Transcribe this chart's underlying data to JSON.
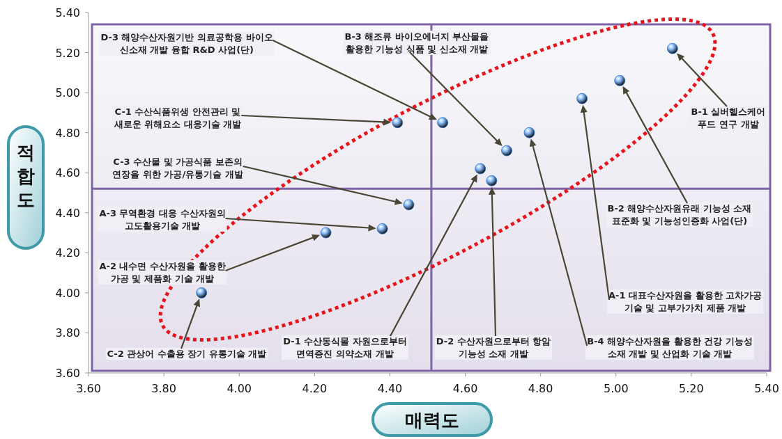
{
  "chart_data": {
    "type": "scatter",
    "xlabel": "매력도",
    "ylabel": "적합도",
    "xlim": [
      3.6,
      5.4
    ],
    "ylim": [
      3.6,
      5.4
    ],
    "xticks": [
      {
        "value": 3.6,
        "label": "3.60"
      },
      {
        "value": 3.8,
        "label": "3.80"
      },
      {
        "value": 4.0,
        "label": "4.00"
      },
      {
        "value": 4.2,
        "label": "4.20"
      },
      {
        "value": 4.4,
        "label": "4.40"
      },
      {
        "value": 4.6,
        "label": "4.60"
      },
      {
        "value": 4.8,
        "label": "4.80"
      },
      {
        "value": 5.0,
        "label": "5.00"
      },
      {
        "value": 5.2,
        "label": "5.20"
      },
      {
        "value": 5.4,
        "label": "5.40"
      }
    ],
    "yticks": [
      {
        "value": 3.6,
        "label": "3.60"
      },
      {
        "value": 3.8,
        "label": "3.80"
      },
      {
        "value": 4.0,
        "label": "4.00"
      },
      {
        "value": 4.2,
        "label": "4.20"
      },
      {
        "value": 4.4,
        "label": "4.40"
      },
      {
        "value": 4.6,
        "label": "4.60"
      },
      {
        "value": 4.8,
        "label": "4.80"
      },
      {
        "value": 5.0,
        "label": "5.00"
      },
      {
        "value": 5.2,
        "label": "5.20"
      },
      {
        "value": 5.4,
        "label": "5.40"
      }
    ],
    "marker": "circle",
    "series": [
      {
        "color": "#2a72d8",
        "x": [
          4.54,
          4.71,
          4.42,
          4.45,
          4.38,
          4.23,
          3.9,
          4.64,
          4.67,
          4.77,
          4.91,
          5.01,
          5.15
        ],
        "values": [
          4.85,
          4.71,
          4.85,
          4.44,
          4.32,
          4.3,
          4.0,
          4.62,
          4.56,
          4.8,
          4.97,
          5.06,
          5.22
        ]
      }
    ],
    "ref_lines": [
      {
        "axis": "x",
        "value": 4.51,
        "color": "#7e64a6"
      },
      {
        "axis": "y",
        "value": 4.52,
        "color": "#7e64a6"
      }
    ],
    "annotations": [
      "D-3 해양수산자원기반 의료공학용 바이오\n신소재 개발 융합 R&D 사업(단)",
      "B-3 해조류 바이오에너지 부산물을\n활용한 기능성 식품 및 신소재 개발",
      "C-1 수산식품위생 안전관리 및\n새로운 위해요소 대응기술 개발",
      "C-3 수산물 및 가공식품 보존의\n연장을 위한 가공/유통기술 개발",
      "A-3 무역환경 대응 수산자원의\n고도활용기술 개발",
      "A-2 내수면 수산자원을 활용한\n가공 및 제품화 기술 개발",
      "C-2 관상어 수출용 장기 유통기술 개발",
      "D-1 수산동식물 자원으로부터\n면역증진 의약소재 개발",
      "D-2 수산자원으로부터 항암\n기능성 소재 개발",
      "B-4 해양수산자원을 활용한 건강 기능성\n소재 개발 및 산업화 기술 개발",
      "A-1 대표수산자원을 활용한 고차가공\n기술 및 고부가가치 제품 개발",
      "B-2 해양수산자원유래 기능성 소재\n표준화 및 기능성인증화 사업(단)",
      "B-1 실버헬스케어\n푸드 연구 개발"
    ]
  }
}
